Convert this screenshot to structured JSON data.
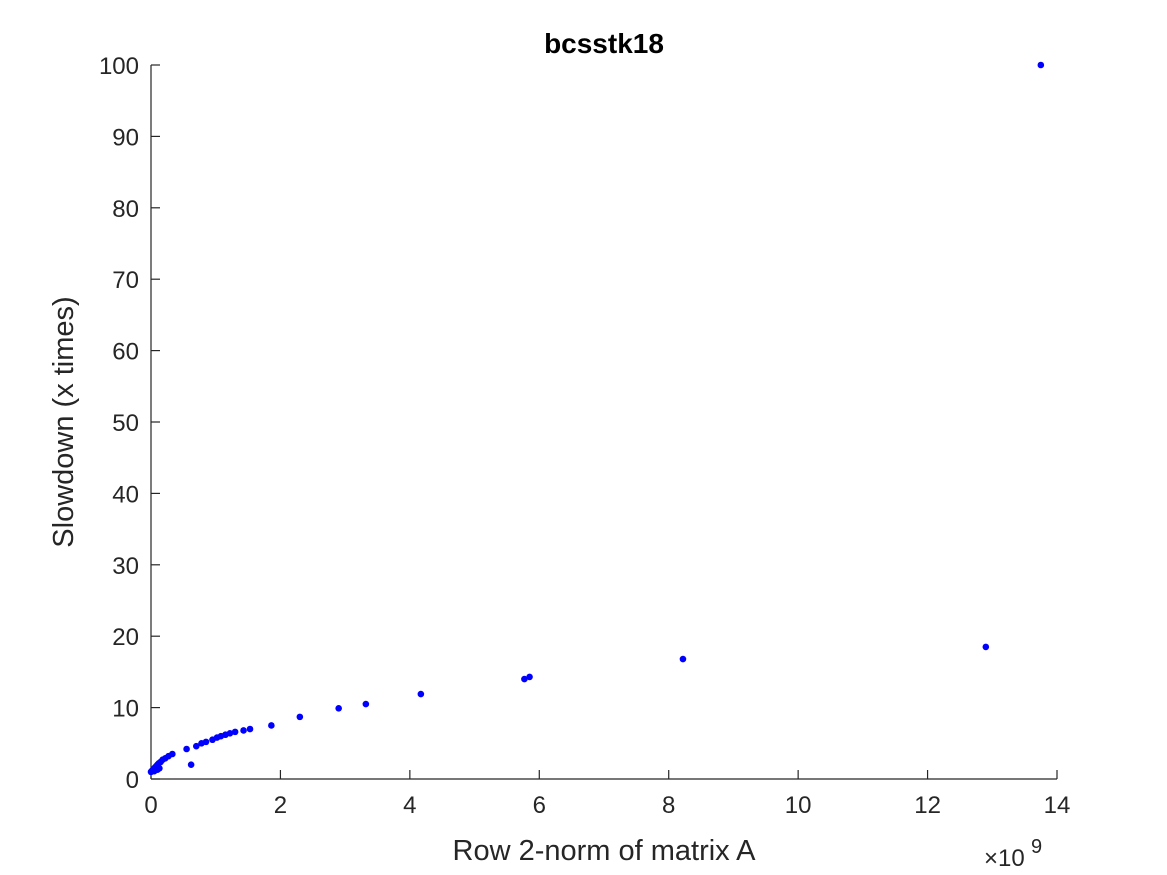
{
  "chart_data": {
    "type": "scatter",
    "title": "bcsstk18",
    "xlabel": "Row 2-norm of matrix A",
    "ylabel": "Slowdown (x times)",
    "x_multiplier_label": "×10",
    "x_multiplier_exponent": "9",
    "xlim": [
      0,
      14
    ],
    "ylim": [
      0,
      100
    ],
    "xticks": [
      "0",
      "2",
      "4",
      "6",
      "8",
      "10",
      "12",
      "14"
    ],
    "yticks": [
      "0",
      "10",
      "20",
      "30",
      "40",
      "50",
      "60",
      "70",
      "80",
      "90",
      "100"
    ],
    "grid": false,
    "marker_color": "#0000ff",
    "axis_color": "#262626",
    "series": [
      {
        "x": [
          0.0,
          0.02,
          0.04,
          0.06,
          0.08,
          0.1,
          0.12,
          0.15,
          0.18,
          0.22,
          0.27,
          0.33,
          0.05,
          0.1,
          0.13,
          0.55,
          0.62,
          0.7,
          0.78,
          0.85,
          0.95,
          1.02,
          1.08,
          1.15,
          1.22,
          1.3,
          1.43,
          1.53,
          1.86,
          2.3,
          2.9,
          3.32,
          4.17,
          5.77,
          5.85,
          8.22,
          12.9,
          13.75
        ],
        "y": [
          1.0,
          1.2,
          1.4,
          1.6,
          1.8,
          2.0,
          2.2,
          2.4,
          2.7,
          2.9,
          3.2,
          3.5,
          1.1,
          1.3,
          1.5,
          4.2,
          2.0,
          4.6,
          5.0,
          5.2,
          5.5,
          5.8,
          6.0,
          6.2,
          6.4,
          6.6,
          6.8,
          7.0,
          7.5,
          8.7,
          9.9,
          10.5,
          11.9,
          14.0,
          14.3,
          16.8,
          18.5,
          100.0
        ]
      }
    ]
  }
}
